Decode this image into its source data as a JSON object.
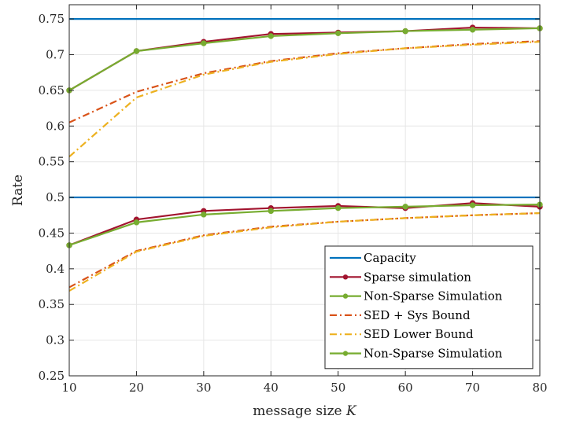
{
  "chart_data": {
    "type": "line",
    "xlabel": "message size K",
    "ylabel": "Rate",
    "xlim": [
      10,
      80
    ],
    "ylim": [
      0.25,
      0.77
    ],
    "xticks": [
      10,
      20,
      30,
      40,
      50,
      60,
      70,
      80
    ],
    "yticks": [
      0.25,
      0.3,
      0.35,
      0.4,
      0.45,
      0.5,
      0.55,
      0.6,
      0.65,
      0.7,
      0.75
    ],
    "ytick_labels": [
      "0.25",
      "0.3",
      "0.35",
      "0.4",
      "0.45",
      "0.5",
      "0.55",
      "0.6",
      "0.65",
      "0.7",
      "0.75"
    ],
    "grid": true,
    "legend_position": "bottom-right",
    "x": [
      10,
      20,
      30,
      40,
      50,
      60,
      70,
      80
    ],
    "series": [
      {
        "name": "Capacity",
        "color": "#0072BD",
        "style": "solid",
        "marker": false,
        "groups": [
          [
            0.75,
            0.75,
            0.75,
            0.75,
            0.75,
            0.75,
            0.75,
            0.75
          ],
          [
            0.5,
            0.5,
            0.5,
            0.5,
            0.5,
            0.5,
            0.5,
            0.5
          ]
        ]
      },
      {
        "name": "Sparse simulation",
        "color": "#A2142F",
        "style": "solid",
        "marker": true,
        "groups": [
          [
            0.65,
            0.705,
            0.718,
            0.729,
            0.731,
            0.733,
            0.738,
            0.737
          ],
          [
            0.433,
            0.469,
            0.481,
            0.485,
            0.488,
            0.485,
            0.492,
            0.487
          ]
        ]
      },
      {
        "name": "Non-Sparse Simulation",
        "color": "#77AC30",
        "style": "solid",
        "marker": true,
        "groups": [
          [
            0.65,
            0.705,
            0.716,
            0.726,
            0.73,
            0.733,
            0.735,
            0.737
          ],
          [
            0.433,
            0.465,
            0.476,
            0.481,
            0.485,
            0.487,
            0.489,
            0.49
          ]
        ]
      },
      {
        "name": "SED + Sys Bound",
        "color": "#D95319",
        "style": "dashdot",
        "marker": false,
        "groups": [
          [
            0.605,
            0.648,
            0.674,
            0.691,
            0.702,
            0.709,
            0.715,
            0.719
          ],
          [
            0.374,
            0.425,
            0.447,
            0.459,
            0.466,
            0.471,
            0.475,
            0.478
          ]
        ]
      },
      {
        "name": "SED Lower Bound",
        "color": "#EDB120",
        "style": "dashdot",
        "marker": false,
        "groups": [
          [
            0.557,
            0.64,
            0.672,
            0.69,
            0.701,
            0.709,
            0.714,
            0.718
          ],
          [
            0.369,
            0.424,
            0.446,
            0.458,
            0.466,
            0.471,
            0.475,
            0.478
          ]
        ]
      },
      {
        "name": "Non-Sparse Simulation",
        "color": "#77AC30",
        "style": "solid",
        "marker": true,
        "groups": []
      }
    ]
  }
}
